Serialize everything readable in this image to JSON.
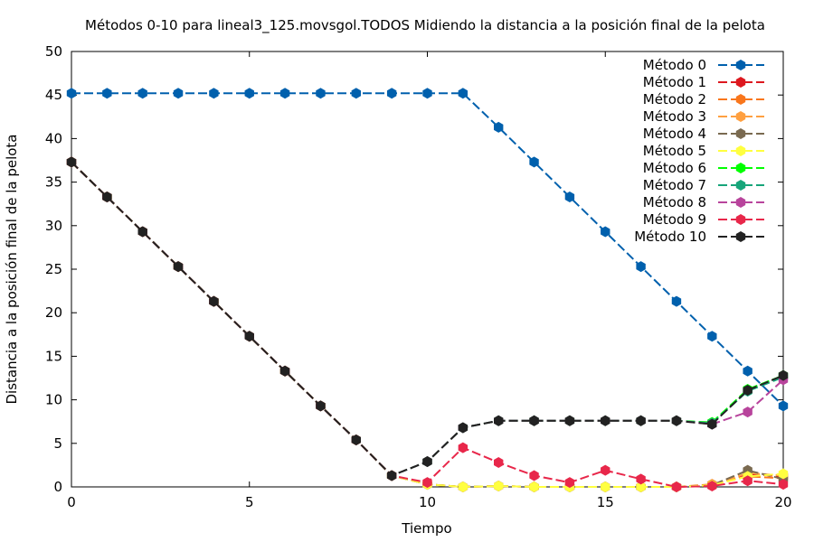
{
  "chart_data": {
    "type": "line",
    "title": "Métodos 0-10 para lineal3_125.movsgol.TODOS Midiendo la distancia a la posición final de la pelota",
    "xlabel": "Tiempo",
    "ylabel": "Distancia a la posición final de la pelota",
    "xlim": [
      0,
      20
    ],
    "ylim": [
      0,
      50
    ],
    "xticks": [
      "0",
      "5",
      "10",
      "15",
      "20"
    ],
    "yticks": [
      "0",
      "5",
      "10",
      "15",
      "20",
      "25",
      "30",
      "35",
      "40",
      "45",
      "50"
    ],
    "legend_position": "top-right",
    "grid": false,
    "x": [
      0,
      1,
      2,
      3,
      4,
      5,
      6,
      7,
      8,
      9,
      10,
      11,
      12,
      13,
      14,
      15,
      16,
      17,
      18,
      19,
      20
    ],
    "series": [
      {
        "name": "Método 0",
        "color": "#0060ad",
        "values": [
          45.2,
          45.2,
          45.2,
          45.2,
          45.2,
          45.2,
          45.2,
          45.2,
          45.2,
          45.2,
          45.2,
          45.2,
          41.3,
          37.3,
          33.3,
          29.3,
          25.3,
          21.3,
          17.3,
          13.3,
          9.3
        ]
      },
      {
        "name": "Método 1",
        "color": "#dd181f",
        "values": [
          37.3,
          33.3,
          29.3,
          25.3,
          21.3,
          17.3,
          13.3,
          9.3,
          5.4,
          1.3,
          0.3,
          0.0,
          0.1,
          0.0,
          0.0,
          0.0,
          0.0,
          0.0,
          0.2,
          1.5,
          1.2
        ]
      },
      {
        "name": "Método 2",
        "color": "#f9761c",
        "values": [
          37.3,
          33.3,
          29.3,
          25.3,
          21.3,
          17.3,
          13.3,
          9.3,
          5.4,
          1.3,
          0.3,
          0.0,
          0.1,
          0.0,
          0.0,
          0.0,
          0.0,
          0.0,
          0.3,
          1.2,
          1.0
        ]
      },
      {
        "name": "Método 3",
        "color": "#ffa040",
        "values": [
          37.3,
          33.3,
          29.3,
          25.3,
          21.3,
          17.3,
          13.3,
          9.3,
          5.4,
          1.3,
          0.3,
          0.0,
          0.1,
          0.0,
          0.0,
          0.0,
          0.0,
          0.0,
          0.2,
          1.6,
          1.3
        ]
      },
      {
        "name": "Método 4",
        "color": "#7a6a50",
        "values": [
          37.3,
          33.3,
          29.3,
          25.3,
          21.3,
          17.3,
          13.3,
          9.3,
          5.4,
          1.3,
          0.3,
          0.0,
          0.1,
          0.0,
          0.0,
          0.0,
          0.0,
          0.0,
          0.2,
          1.9,
          0.9
        ]
      },
      {
        "name": "Método 5",
        "color": "#ffff40",
        "values": [
          37.3,
          33.3,
          29.3,
          25.3,
          21.3,
          17.3,
          13.3,
          9.3,
          5.4,
          1.3,
          0.3,
          0.0,
          0.1,
          0.0,
          0.0,
          0.0,
          0.0,
          0.0,
          0.2,
          1.2,
          1.5
        ]
      },
      {
        "name": "Método 6",
        "color": "#00ff00",
        "values": [
          37.3,
          33.3,
          29.3,
          25.3,
          21.3,
          17.3,
          13.3,
          9.3,
          5.4,
          1.3,
          2.9,
          6.8,
          7.6,
          7.6,
          7.6,
          7.6,
          7.6,
          7.6,
          7.4,
          11.2,
          12.8
        ]
      },
      {
        "name": "Método 7",
        "color": "#17a57a",
        "values": [
          37.3,
          33.3,
          29.3,
          25.3,
          21.3,
          17.3,
          13.3,
          9.3,
          5.4,
          1.3,
          2.9,
          6.8,
          7.6,
          7.6,
          7.6,
          7.6,
          7.6,
          7.6,
          7.3,
          11.0,
          12.6
        ]
      },
      {
        "name": "Método 8",
        "color": "#b8449c",
        "values": [
          37.3,
          33.3,
          29.3,
          25.3,
          21.3,
          17.3,
          13.3,
          9.3,
          5.4,
          1.3,
          2.9,
          6.8,
          7.6,
          7.6,
          7.6,
          7.6,
          7.6,
          7.6,
          7.2,
          8.6,
          12.3
        ]
      },
      {
        "name": "Método 9",
        "color": "#e8274a",
        "values": [
          37.3,
          33.3,
          29.3,
          25.3,
          21.3,
          17.3,
          13.3,
          9.3,
          5.4,
          1.3,
          0.5,
          4.5,
          2.8,
          1.3,
          0.5,
          1.9,
          0.9,
          0.0,
          0.1,
          0.7,
          0.3
        ]
      },
      {
        "name": "Método 10",
        "color": "#222222",
        "values": [
          37.3,
          33.3,
          29.3,
          25.3,
          21.3,
          17.3,
          13.3,
          9.3,
          5.4,
          1.3,
          2.9,
          6.8,
          7.6,
          7.6,
          7.6,
          7.6,
          7.6,
          7.6,
          7.2,
          11.1,
          12.8
        ]
      }
    ]
  }
}
